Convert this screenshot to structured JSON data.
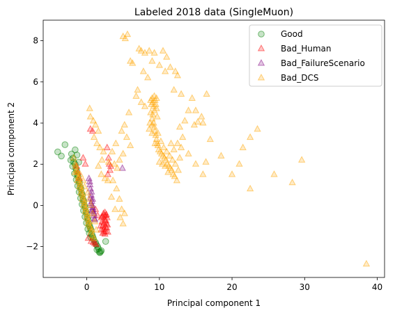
{
  "chart_data": {
    "type": "scatter",
    "title": "Labeled 2018 data (SingleMuon)",
    "xlabel": "Principal component 1",
    "ylabel": "Principal component 2",
    "xlim": [
      -6,
      41
    ],
    "ylim": [
      -3.5,
      9
    ],
    "xticks": [
      0,
      10,
      20,
      30,
      40
    ],
    "yticks": [
      -2,
      0,
      2,
      4,
      6,
      8
    ],
    "grid": false,
    "legend_position": "top-right",
    "series": [
      {
        "name": "Good",
        "marker": "circle",
        "color": "#008000",
        "points": [
          [
            -4.0,
            2.6
          ],
          [
            -3.5,
            2.4
          ],
          [
            -3.0,
            2.95
          ],
          [
            -2.1,
            2.5
          ],
          [
            -1.6,
            2.7
          ],
          [
            -1.9,
            2.3
          ],
          [
            -1.6,
            2.0
          ],
          [
            -1.4,
            1.7
          ],
          [
            -1.2,
            1.4
          ],
          [
            -1.0,
            1.1
          ],
          [
            -0.8,
            0.8
          ],
          [
            -0.6,
            0.5
          ],
          [
            -0.4,
            0.2
          ],
          [
            -0.2,
            -0.1
          ],
          [
            0.0,
            -0.4
          ],
          [
            0.2,
            -0.7
          ],
          [
            0.4,
            -1.0
          ],
          [
            0.6,
            -1.2
          ],
          [
            0.8,
            -1.5
          ],
          [
            1.0,
            -1.7
          ],
          [
            1.3,
            -1.9
          ],
          [
            1.6,
            -2.1
          ],
          [
            1.9,
            -2.25
          ],
          [
            2.6,
            -1.75
          ],
          [
            -1.8,
            2.1
          ],
          [
            -1.5,
            1.8
          ],
          [
            -1.3,
            1.5
          ],
          [
            -1.1,
            1.2
          ],
          [
            -0.9,
            0.9
          ],
          [
            -0.7,
            0.6
          ],
          [
            -0.5,
            0.3
          ],
          [
            -0.3,
            0.0
          ],
          [
            -0.1,
            -0.3
          ],
          [
            0.1,
            -0.6
          ],
          [
            0.3,
            -0.9
          ],
          [
            0.5,
            -1.1
          ],
          [
            0.7,
            -1.4
          ],
          [
            0.9,
            -1.6
          ],
          [
            1.2,
            -1.8
          ],
          [
            1.5,
            -2.0
          ],
          [
            -2.2,
            2.2
          ],
          [
            -1.95,
            1.9
          ],
          [
            -1.7,
            1.55
          ],
          [
            -1.45,
            1.25
          ],
          [
            -1.25,
            0.95
          ],
          [
            -1.05,
            0.65
          ],
          [
            -0.85,
            0.35
          ],
          [
            -0.65,
            0.05
          ],
          [
            -0.45,
            -0.25
          ],
          [
            -0.25,
            -0.55
          ],
          [
            -0.05,
            -0.85
          ],
          [
            0.15,
            -1.15
          ],
          [
            0.35,
            -1.35
          ],
          [
            0.55,
            -1.55
          ],
          [
            1.8,
            -2.3
          ],
          [
            2.0,
            -2.2
          ],
          [
            1.7,
            -2.25
          ],
          [
            1.4,
            -2.15
          ],
          [
            -1.35,
            2.45
          ],
          [
            -1.1,
            2.1
          ]
        ]
      },
      {
        "name": "Bad_Human",
        "marker": "triangle",
        "color": "#ff0000",
        "points": [
          [
            2.0,
            -0.6
          ],
          [
            2.1,
            -0.8
          ],
          [
            2.2,
            -1.0
          ],
          [
            2.3,
            -1.15
          ],
          [
            2.4,
            -1.3
          ],
          [
            2.5,
            -1.4
          ],
          [
            2.6,
            -1.25
          ],
          [
            2.7,
            -0.9
          ],
          [
            2.8,
            -0.6
          ],
          [
            2.6,
            -0.5
          ],
          [
            2.3,
            -0.4
          ],
          [
            2.45,
            -0.7
          ],
          [
            2.75,
            -1.1
          ],
          [
            2.9,
            -1.3
          ],
          [
            2.55,
            -1.05
          ],
          [
            2.35,
            -0.85
          ],
          [
            2.15,
            -0.55
          ],
          [
            2.65,
            -0.75
          ],
          [
            2.85,
            -0.95
          ],
          [
            2.5,
            -0.35
          ],
          [
            1.9,
            -1.0
          ],
          [
            2.0,
            -1.2
          ],
          [
            2.2,
            -1.35
          ],
          [
            2.4,
            -0.5
          ],
          [
            2.7,
            -0.45
          ],
          [
            -1.2,
            1.6
          ],
          [
            -1.4,
            1.9
          ],
          [
            -1.0,
            1.3
          ],
          [
            0.2,
            -1.6
          ],
          [
            0.6,
            -1.75
          ],
          [
            0.9,
            -1.8
          ],
          [
            1.1,
            -1.85
          ],
          [
            1.3,
            -1.9
          ],
          [
            -0.5,
            2.3
          ],
          [
            -0.2,
            2.0
          ],
          [
            0.5,
            3.7
          ],
          [
            0.8,
            3.6
          ],
          [
            2.8,
            2.8
          ],
          [
            3.0,
            2.3
          ],
          [
            3.1,
            2.0
          ],
          [
            3.2,
            1.7
          ],
          [
            2.9,
            1.5
          ],
          [
            3.3,
            1.9
          ],
          [
            1.2,
            -0.2
          ],
          [
            1.5,
            -0.5
          ]
        ]
      },
      {
        "name": "Bad_FailureScenario",
        "marker": "triangle",
        "color": "#800080",
        "points": [
          [
            0.5,
            0.8
          ],
          [
            0.6,
            0.5
          ],
          [
            0.7,
            0.2
          ],
          [
            0.8,
            -0.1
          ],
          [
            0.9,
            -0.3
          ],
          [
            1.0,
            -0.5
          ],
          [
            0.55,
            0.35
          ],
          [
            0.75,
            0.0
          ],
          [
            0.85,
            -0.2
          ],
          [
            0.95,
            -0.4
          ],
          [
            0.65,
            0.65
          ],
          [
            0.45,
            1.0
          ],
          [
            1.05,
            -0.65
          ],
          [
            0.7,
            -0.25
          ],
          [
            4.9,
            1.8
          ],
          [
            0.3,
            1.3
          ],
          [
            0.4,
            1.15
          ],
          [
            1.1,
            -0.7
          ],
          [
            0.6,
            0.1
          ],
          [
            0.8,
            0.3
          ]
        ]
      },
      {
        "name": "Bad_DCS",
        "marker": "triangle",
        "color": "#ffa500",
        "points": [
          [
            5.0,
            8.2
          ],
          [
            5.6,
            8.3
          ],
          [
            5.3,
            8.1
          ],
          [
            6.0,
            7.0
          ],
          [
            6.3,
            6.9
          ],
          [
            7.2,
            7.6
          ],
          [
            7.5,
            7.5
          ],
          [
            8.0,
            7.4
          ],
          [
            8.6,
            7.5
          ],
          [
            9.3,
            7.4
          ],
          [
            10.5,
            7.5
          ],
          [
            11.0,
            7.2
          ],
          [
            9.0,
            7.0
          ],
          [
            10.0,
            6.8
          ],
          [
            10.8,
            6.5
          ],
          [
            11.5,
            6.7
          ],
          [
            12.2,
            6.5
          ],
          [
            12.5,
            6.3
          ],
          [
            7.8,
            6.5
          ],
          [
            8.4,
            6.2
          ],
          [
            7.0,
            5.6
          ],
          [
            6.8,
            5.3
          ],
          [
            7.5,
            5.0
          ],
          [
            8.0,
            4.8
          ],
          [
            12.0,
            5.6
          ],
          [
            13.0,
            5.4
          ],
          [
            14.5,
            5.2
          ],
          [
            15.0,
            4.6
          ],
          [
            16.5,
            5.4
          ],
          [
            15.8,
            4.3
          ],
          [
            14.0,
            4.6
          ],
          [
            13.5,
            4.1
          ],
          [
            16.0,
            4.0
          ],
          [
            14.8,
            3.9
          ],
          [
            15.3,
            4.05
          ],
          [
            12.8,
            3.8
          ],
          [
            13.2,
            3.3
          ],
          [
            12.5,
            3.0
          ],
          [
            13.0,
            2.8
          ],
          [
            14.0,
            2.5
          ],
          [
            15.0,
            2.0
          ],
          [
            16.0,
            1.5
          ],
          [
            16.4,
            2.1
          ],
          [
            18.5,
            2.4
          ],
          [
            17.0,
            3.2
          ],
          [
            20.0,
            1.5
          ],
          [
            21.0,
            2.0
          ],
          [
            21.5,
            2.8
          ],
          [
            22.5,
            3.3
          ],
          [
            23.5,
            3.7
          ],
          [
            22.5,
            0.8
          ],
          [
            25.8,
            1.5
          ],
          [
            28.3,
            1.1
          ],
          [
            29.6,
            2.2
          ],
          [
            38.5,
            -2.85
          ],
          [
            4.8,
            3.6
          ],
          [
            5.2,
            3.9
          ],
          [
            5.8,
            4.5
          ],
          [
            5.5,
            3.3
          ],
          [
            6.0,
            2.9
          ],
          [
            5.0,
            2.5
          ],
          [
            4.5,
            2.2
          ],
          [
            4.2,
            1.8
          ],
          [
            3.8,
            2.0
          ],
          [
            3.5,
            2.6
          ],
          [
            4.0,
            3.0
          ],
          [
            3.6,
            1.2
          ],
          [
            4.1,
            0.8
          ],
          [
            4.5,
            0.3
          ],
          [
            4.8,
            -0.2
          ],
          [
            4.6,
            -0.6
          ],
          [
            5.2,
            -0.4
          ],
          [
            5.0,
            -0.9
          ],
          [
            3.9,
            -0.2
          ],
          [
            3.4,
            0.4
          ],
          [
            0.4,
            4.7
          ],
          [
            0.5,
            4.3
          ],
          [
            0.9,
            4.1
          ],
          [
            1.2,
            3.9
          ],
          [
            1.6,
            3.6
          ],
          [
            1.0,
            3.3
          ],
          [
            1.4,
            3.0
          ],
          [
            1.8,
            2.8
          ],
          [
            2.3,
            2.6
          ],
          [
            2.1,
            2.2
          ],
          [
            1.6,
            1.9
          ],
          [
            2.0,
            1.5
          ],
          [
            2.5,
            1.3
          ],
          [
            2.9,
            1.2
          ],
          [
            3.0,
            2.1
          ],
          [
            9.0,
            5.2
          ],
          [
            9.1,
            5.0
          ],
          [
            9.2,
            4.8
          ],
          [
            9.3,
            4.6
          ],
          [
            9.1,
            4.4
          ],
          [
            9.0,
            4.2
          ],
          [
            9.2,
            4.0
          ],
          [
            9.3,
            3.8
          ],
          [
            9.4,
            3.6
          ],
          [
            9.5,
            3.4
          ],
          [
            9.6,
            3.2
          ],
          [
            9.7,
            3.0
          ],
          [
            9.8,
            2.9
          ],
          [
            9.9,
            2.7
          ],
          [
            10.1,
            2.6
          ],
          [
            10.3,
            2.5
          ],
          [
            10.5,
            2.4
          ],
          [
            10.7,
            2.3
          ],
          [
            10.9,
            2.2
          ],
          [
            11.1,
            2.0
          ],
          [
            11.3,
            1.9
          ],
          [
            11.5,
            1.8
          ],
          [
            11.7,
            1.7
          ],
          [
            11.9,
            1.5
          ],
          [
            12.1,
            1.4
          ],
          [
            8.9,
            4.9
          ],
          [
            9.4,
            5.1
          ],
          [
            9.6,
            4.7
          ],
          [
            9.7,
            4.3
          ],
          [
            8.8,
            4.5
          ],
          [
            8.7,
            4.0
          ],
          [
            8.6,
            3.7
          ],
          [
            9.0,
            3.5
          ],
          [
            9.4,
            3.0
          ],
          [
            9.8,
            3.5
          ],
          [
            10.2,
            3.1
          ],
          [
            10.6,
            2.8
          ],
          [
            11.0,
            2.6
          ],
          [
            11.4,
            2.4
          ],
          [
            11.8,
            2.2
          ],
          [
            12.2,
            2.0
          ],
          [
            12.6,
            1.7
          ],
          [
            12.8,
            2.3
          ],
          [
            12.0,
            2.7
          ],
          [
            11.6,
            3.0
          ],
          [
            10.8,
            1.9
          ],
          [
            10.4,
            2.0
          ],
          [
            10.0,
            2.1
          ],
          [
            11.2,
            1.6
          ],
          [
            12.4,
            1.2
          ],
          [
            9.3,
            5.3
          ],
          [
            9.5,
            4.9
          ],
          [
            8.8,
            5.1
          ],
          [
            9.6,
            5.2
          ],
          [
            9.0,
            3.9
          ],
          [
            -1.8,
            2.3
          ],
          [
            -1.6,
            2.0
          ],
          [
            -1.4,
            1.7
          ],
          [
            -1.2,
            1.4
          ],
          [
            -1.0,
            1.1
          ],
          [
            -0.8,
            0.8
          ],
          [
            -0.6,
            0.5
          ],
          [
            -0.4,
            0.2
          ],
          [
            -0.2,
            -0.1
          ],
          [
            0.0,
            -0.4
          ],
          [
            0.2,
            -0.7
          ],
          [
            0.4,
            -1.0
          ],
          [
            0.6,
            -1.3
          ],
          [
            0.8,
            -1.5
          ],
          [
            1.0,
            -1.6
          ],
          [
            -1.5,
            1.9
          ],
          [
            -1.3,
            1.6
          ],
          [
            -1.1,
            1.3
          ],
          [
            -0.9,
            1.0
          ],
          [
            -0.7,
            0.7
          ],
          [
            -0.5,
            0.4
          ],
          [
            -0.3,
            0.1
          ],
          [
            -0.1,
            -0.2
          ],
          [
            0.1,
            -0.5
          ],
          [
            0.3,
            -0.8
          ],
          [
            0.5,
            -1.1
          ],
          [
            0.7,
            -1.2
          ],
          [
            -1.0,
            0.9
          ],
          [
            -0.8,
            0.6
          ],
          [
            -0.6,
            0.3
          ],
          [
            -0.4,
            0.0
          ],
          [
            -0.2,
            -0.3
          ],
          [
            0.0,
            -0.6
          ],
          [
            0.2,
            -0.9
          ],
          [
            -1.3,
            1.2
          ],
          [
            -0.9,
            1.5
          ],
          [
            -0.5,
            1.2
          ],
          [
            -0.3,
            0.9
          ],
          [
            0.1,
            0.6
          ],
          [
            0.3,
            0.3
          ],
          [
            0.6,
            0.0
          ],
          [
            0.8,
            -0.4
          ],
          [
            1.1,
            -0.8
          ],
          [
            1.3,
            -1.2
          ],
          [
            -1.6,
            1.6
          ]
        ]
      }
    ]
  }
}
